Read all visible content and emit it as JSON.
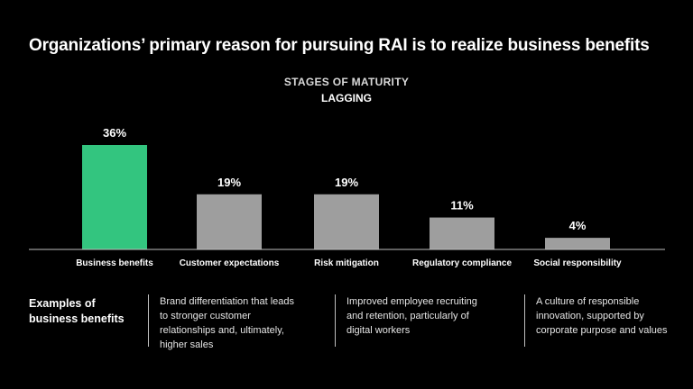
{
  "header": {
    "title": "Organizations’ primary reason for pursuing RAI is to realize business benefits"
  },
  "chart_data": {
    "type": "bar",
    "title": "Organizations’ primary reason for pursuing RAI is to realize business benefits",
    "subtitle": "STAGES OF MATURITY",
    "subtitle2": "LAGGING",
    "categories": [
      "Business benefits",
      "Customer expectations",
      "Risk mitigation",
      "Regulatory compliance",
      "Social responsibility"
    ],
    "values": [
      36,
      19,
      19,
      11,
      4
    ],
    "value_labels": [
      "36%",
      "19%",
      "19%",
      "11%",
      "4%"
    ],
    "unit": "%",
    "ylim": [
      0,
      36
    ],
    "grid": false,
    "legend": "none",
    "colors": {
      "highlight": "#33c57f",
      "default": "#9e9e9e",
      "axis": "#bfbfbf"
    },
    "highlight_index": 0
  },
  "examples": {
    "heading": "Examples of business benefits",
    "items": [
      "Brand differentiation that leads to stronger customer relationships and, ultimately, higher sales",
      "Improved employee recruiting and retention, particularly of digital workers",
      "A culture of responsible innovation, supported by corporate purpose and values"
    ]
  }
}
